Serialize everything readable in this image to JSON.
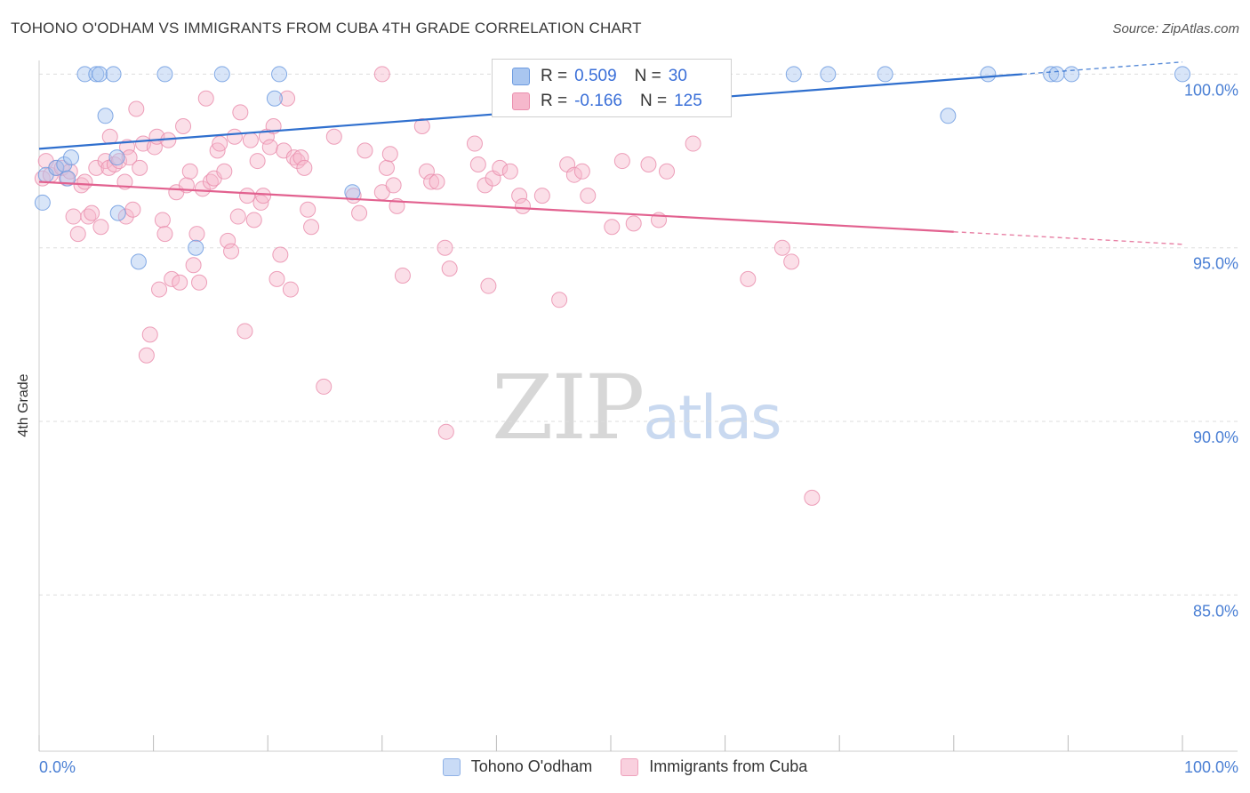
{
  "header": {
    "title": "TOHONO O'ODHAM VS IMMIGRANTS FROM CUBA 4TH GRADE CORRELATION CHART",
    "source": "Source: ZipAtlas.com"
  },
  "legend": {
    "rows": [
      {
        "r_label": "R =",
        "r_value": "0.509",
        "n_label": "N =",
        "n_value": "30"
      },
      {
        "r_label": "R =",
        "r_value": "-0.166",
        "n_label": "N =",
        "n_value": "125"
      }
    ]
  },
  "watermark": {
    "zip": "ZIP",
    "atlas": "atlas"
  },
  "colors": {
    "blue_fill": "#a9c6f0",
    "blue_stroke": "#6d9be0",
    "blue_line": "#2f6fce",
    "pink_fill": "#f6b8cc",
    "pink_stroke": "#ea8fae",
    "pink_line": "#e2618f",
    "axis_text": "#4a7fd4",
    "grid": "#dddddd"
  },
  "chart_data": {
    "type": "scatter",
    "title": "TOHONO O'ODHAM VS IMMIGRANTS FROM CUBA 4TH GRADE CORRELATION CHART",
    "xlabel": "",
    "ylabel": "4th Grade",
    "xlim": [
      0,
      100
    ],
    "ylim": [
      80.5,
      100.6
    ],
    "x_tick_labels": [
      "0.0%",
      "100.0%"
    ],
    "y_ticks": [
      85,
      90,
      95,
      100
    ],
    "y_tick_labels": [
      "85.0%",
      "90.0%",
      "95.0%",
      "100.0%"
    ],
    "grid": true,
    "legend_position": "bottom",
    "series": [
      {
        "name": "Tohono O'odham",
        "color": "#a9c6f0",
        "r": 0.509,
        "n": 30,
        "trend": {
          "x0": 0,
          "y0": 97.85,
          "x1": 100,
          "y1": 100.35,
          "solid_until": 86
        },
        "points": [
          [
            0.3,
            96.3
          ],
          [
            0.6,
            97.1
          ],
          [
            1.5,
            97.3
          ],
          [
            2.2,
            97.4
          ],
          [
            2.5,
            97.0
          ],
          [
            2.8,
            97.6
          ],
          [
            4.0,
            100.0
          ],
          [
            5.0,
            100.0
          ],
          [
            5.3,
            100.0
          ],
          [
            5.8,
            98.8
          ],
          [
            6.5,
            100.0
          ],
          [
            6.8,
            97.6
          ],
          [
            6.9,
            96.0
          ],
          [
            8.7,
            94.6
          ],
          [
            11.0,
            100.0
          ],
          [
            13.7,
            95.0
          ],
          [
            16.0,
            100.0
          ],
          [
            20.6,
            99.3
          ],
          [
            21.0,
            100.0
          ],
          [
            27.4,
            96.6
          ],
          [
            47.3,
            99.3
          ],
          [
            66.0,
            100.0
          ],
          [
            69.0,
            100.0
          ],
          [
            74.0,
            100.0
          ],
          [
            79.5,
            98.8
          ],
          [
            83.0,
            100.0
          ],
          [
            88.5,
            100.0
          ],
          [
            89.0,
            100.0
          ],
          [
            90.3,
            100.0
          ],
          [
            100.0,
            100.0
          ]
        ]
      },
      {
        "name": "Immigrants from Cuba",
        "color": "#f6b8cc",
        "r": -0.166,
        "n": 125,
        "trend": {
          "x0": 0,
          "y0": 96.9,
          "x1": 100,
          "y1": 95.1,
          "solid_until": 80
        },
        "points": [
          [
            0.3,
            97.0
          ],
          [
            0.6,
            97.5
          ],
          [
            1.0,
            97.1
          ],
          [
            1.5,
            97.3
          ],
          [
            2.0,
            97.3
          ],
          [
            2.4,
            97.0
          ],
          [
            2.7,
            97.2
          ],
          [
            3.0,
            95.9
          ],
          [
            3.4,
            95.4
          ],
          [
            3.7,
            96.8
          ],
          [
            4.0,
            96.9
          ],
          [
            4.3,
            95.9
          ],
          [
            4.6,
            96.0
          ],
          [
            5.0,
            97.3
          ],
          [
            5.4,
            95.6
          ],
          [
            5.8,
            97.5
          ],
          [
            6.1,
            97.3
          ],
          [
            6.2,
            98.2
          ],
          [
            6.6,
            97.4
          ],
          [
            7.0,
            97.5
          ],
          [
            7.5,
            96.9
          ],
          [
            7.6,
            95.9
          ],
          [
            7.7,
            97.9
          ],
          [
            7.9,
            97.6
          ],
          [
            8.2,
            96.1
          ],
          [
            8.5,
            99.0
          ],
          [
            8.8,
            97.3
          ],
          [
            9.1,
            98.0
          ],
          [
            9.4,
            91.9
          ],
          [
            9.7,
            92.5
          ],
          [
            10.1,
            97.9
          ],
          [
            10.3,
            98.2
          ],
          [
            10.5,
            93.8
          ],
          [
            10.8,
            95.8
          ],
          [
            11.0,
            95.4
          ],
          [
            11.3,
            98.1
          ],
          [
            11.6,
            94.1
          ],
          [
            12.0,
            96.6
          ],
          [
            12.3,
            94.0
          ],
          [
            12.6,
            98.5
          ],
          [
            12.9,
            96.8
          ],
          [
            13.2,
            97.2
          ],
          [
            13.5,
            94.5
          ],
          [
            13.8,
            95.4
          ],
          [
            14.0,
            94.0
          ],
          [
            14.3,
            96.7
          ],
          [
            14.6,
            99.3
          ],
          [
            15.0,
            96.9
          ],
          [
            15.3,
            97.0
          ],
          [
            15.6,
            97.8
          ],
          [
            15.8,
            98.0
          ],
          [
            16.2,
            97.2
          ],
          [
            16.5,
            95.2
          ],
          [
            16.8,
            94.9
          ],
          [
            17.1,
            98.2
          ],
          [
            17.4,
            95.9
          ],
          [
            17.6,
            98.9
          ],
          [
            18.0,
            92.6
          ],
          [
            18.2,
            96.5
          ],
          [
            18.5,
            98.1
          ],
          [
            18.8,
            95.8
          ],
          [
            19.1,
            97.5
          ],
          [
            19.4,
            96.3
          ],
          [
            19.6,
            96.5
          ],
          [
            19.9,
            98.2
          ],
          [
            20.2,
            97.9
          ],
          [
            20.5,
            98.5
          ],
          [
            20.8,
            94.1
          ],
          [
            21.1,
            94.8
          ],
          [
            21.4,
            97.8
          ],
          [
            21.7,
            99.3
          ],
          [
            22.0,
            93.8
          ],
          [
            22.3,
            97.6
          ],
          [
            22.6,
            97.5
          ],
          [
            22.9,
            97.6
          ],
          [
            23.2,
            97.3
          ],
          [
            23.5,
            96.1
          ],
          [
            23.8,
            95.6
          ],
          [
            24.9,
            91.0
          ],
          [
            25.8,
            98.2
          ],
          [
            27.5,
            96.5
          ],
          [
            28.0,
            96.0
          ],
          [
            28.5,
            97.8
          ],
          [
            30.0,
            96.6
          ],
          [
            30.4,
            97.3
          ],
          [
            30.7,
            97.7
          ],
          [
            31.0,
            96.8
          ],
          [
            31.3,
            96.2
          ],
          [
            31.8,
            94.2
          ],
          [
            33.5,
            98.5
          ],
          [
            33.9,
            97.2
          ],
          [
            34.3,
            96.9
          ],
          [
            34.8,
            96.9
          ],
          [
            35.5,
            95.0
          ],
          [
            35.9,
            94.4
          ],
          [
            35.6,
            89.7
          ],
          [
            38.1,
            98.0
          ],
          [
            38.4,
            97.4
          ],
          [
            39.0,
            96.8
          ],
          [
            39.3,
            93.9
          ],
          [
            39.7,
            97.0
          ],
          [
            40.3,
            97.3
          ],
          [
            41.2,
            97.2
          ],
          [
            42.0,
            96.5
          ],
          [
            42.3,
            96.2
          ],
          [
            44.0,
            96.5
          ],
          [
            45.5,
            93.5
          ],
          [
            46.2,
            97.4
          ],
          [
            46.8,
            97.1
          ],
          [
            47.5,
            97.2
          ],
          [
            48.0,
            96.5
          ],
          [
            50.1,
            95.6
          ],
          [
            51.0,
            97.5
          ],
          [
            52.0,
            95.7
          ],
          [
            53.3,
            97.4
          ],
          [
            54.2,
            95.8
          ],
          [
            54.9,
            97.2
          ],
          [
            57.2,
            98.0
          ],
          [
            62.0,
            94.1
          ],
          [
            65.0,
            95.0
          ],
          [
            65.8,
            94.6
          ],
          [
            67.6,
            87.8
          ],
          [
            30.0,
            100.0
          ]
        ]
      }
    ]
  }
}
